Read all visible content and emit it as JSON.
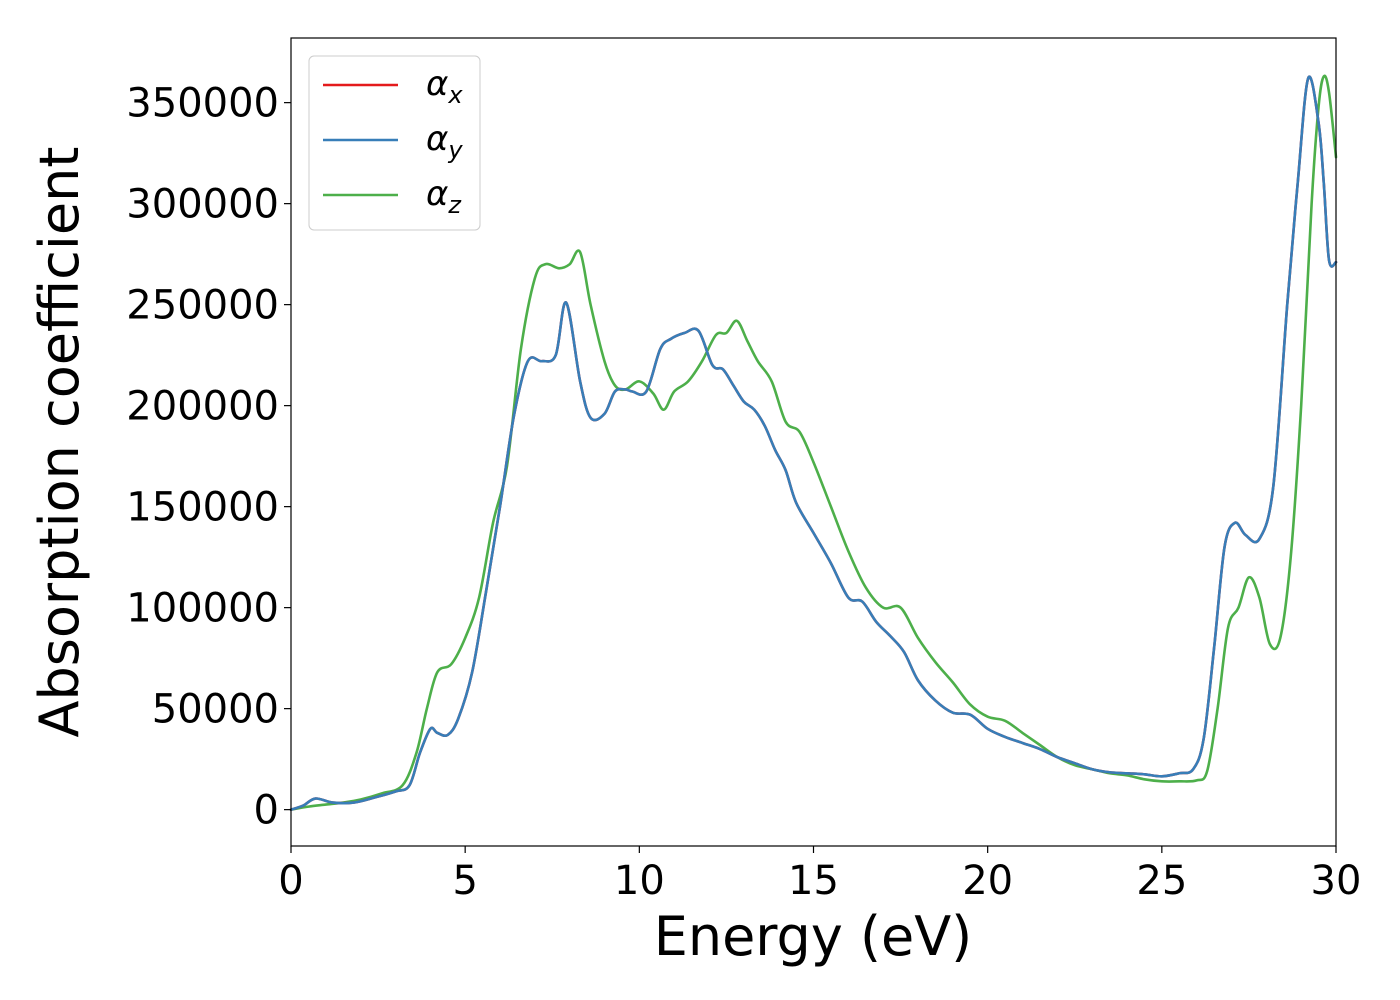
{
  "chart_data": {
    "type": "line",
    "title": "",
    "xlabel": "Energy (eV)",
    "ylabel": "Absorption coefficient",
    "xlim": [
      0,
      30
    ],
    "ylim": [
      -18000,
      382000
    ],
    "xticks": [
      0,
      5,
      10,
      15,
      20,
      25,
      30
    ],
    "xtick_labels": [
      "0",
      "5",
      "10",
      "15",
      "20",
      "25",
      "30"
    ],
    "yticks": [
      0,
      50000,
      100000,
      150000,
      200000,
      250000,
      300000,
      350000
    ],
    "ytick_labels": [
      "0",
      "50000",
      "100000",
      "150000",
      "200000",
      "250000",
      "300000",
      "350000"
    ],
    "grid": false,
    "legend_position": "top-left",
    "series": [
      {
        "name": "α",
        "name_sub": "x",
        "color": "#e41a1c",
        "x": [
          0,
          0.35,
          0.7,
          1.2,
          1.8,
          2.4,
          3.0,
          3.4,
          3.7,
          4.0,
          4.2,
          4.5,
          4.8,
          5.2,
          5.6,
          6.0,
          6.4,
          6.8,
          7.2,
          7.6,
          7.9,
          8.3,
          8.6,
          9.0,
          9.3,
          9.6,
          9.8,
          10.2,
          10.6,
          10.9,
          11.3,
          11.7,
          12.1,
          12.4,
          12.7,
          13.0,
          13.3,
          13.6,
          13.9,
          14.2,
          14.5,
          15.0,
          15.5,
          16.0,
          16.4,
          16.8,
          17.2,
          17.6,
          18.0,
          18.5,
          19.0,
          19.5,
          20.0,
          20.5,
          21.0,
          21.5,
          22.0,
          22.5,
          23.0,
          23.5,
          24.0,
          24.5,
          25.0,
          25.5,
          25.9,
          26.2,
          26.5,
          26.8,
          27.1,
          27.4,
          27.8,
          28.2,
          28.6,
          28.9,
          29.2,
          29.5,
          29.65,
          29.8,
          30.0
        ],
        "y": [
          0,
          2000,
          5500,
          3500,
          3500,
          6000,
          9000,
          12000,
          28000,
          40000,
          38000,
          37000,
          45000,
          68000,
          108000,
          150000,
          195000,
          222000,
          222000,
          225000,
          251000,
          212000,
          194000,
          196000,
          207000,
          208000,
          207000,
          207000,
          228000,
          233000,
          236000,
          237000,
          220000,
          218000,
          210000,
          202000,
          198000,
          190000,
          178000,
          168000,
          152000,
          137000,
          122000,
          105000,
          103000,
          93000,
          86000,
          78000,
          64000,
          54000,
          48000,
          47000,
          40000,
          36000,
          33000,
          30000,
          26000,
          23000,
          20000,
          18500,
          18000,
          17500,
          16500,
          18000,
          20000,
          35000,
          80000,
          130000,
          142000,
          136000,
          134000,
          160000,
          250000,
          310000,
          362000,
          340000,
          310000,
          272000,
          271000
        ]
      },
      {
        "name": "α",
        "name_sub": "y",
        "color": "#377eb8",
        "x": [
          0,
          0.35,
          0.7,
          1.2,
          1.8,
          2.4,
          3.0,
          3.4,
          3.7,
          4.0,
          4.2,
          4.5,
          4.8,
          5.2,
          5.6,
          6.0,
          6.4,
          6.8,
          7.2,
          7.6,
          7.9,
          8.3,
          8.6,
          9.0,
          9.3,
          9.6,
          9.8,
          10.2,
          10.6,
          10.9,
          11.3,
          11.7,
          12.1,
          12.4,
          12.7,
          13.0,
          13.3,
          13.6,
          13.9,
          14.2,
          14.5,
          15.0,
          15.5,
          16.0,
          16.4,
          16.8,
          17.2,
          17.6,
          18.0,
          18.5,
          19.0,
          19.5,
          20.0,
          20.5,
          21.0,
          21.5,
          22.0,
          22.5,
          23.0,
          23.5,
          24.0,
          24.5,
          25.0,
          25.5,
          25.9,
          26.2,
          26.5,
          26.8,
          27.1,
          27.4,
          27.8,
          28.2,
          28.6,
          28.9,
          29.2,
          29.5,
          29.65,
          29.8,
          30.0
        ],
        "y": [
          0,
          2000,
          5500,
          3500,
          3500,
          6000,
          9000,
          12000,
          28000,
          40000,
          38000,
          37000,
          45000,
          68000,
          108000,
          150000,
          195000,
          222000,
          222000,
          225000,
          251000,
          212000,
          194000,
          196000,
          207000,
          208000,
          207000,
          207000,
          228000,
          233000,
          236000,
          237000,
          220000,
          218000,
          210000,
          202000,
          198000,
          190000,
          178000,
          168000,
          152000,
          137000,
          122000,
          105000,
          103000,
          93000,
          86000,
          78000,
          64000,
          54000,
          48000,
          47000,
          40000,
          36000,
          33000,
          30000,
          26000,
          23000,
          20000,
          18500,
          18000,
          17500,
          16500,
          18000,
          20000,
          35000,
          80000,
          130000,
          142000,
          136000,
          134000,
          160000,
          250000,
          310000,
          362000,
          340000,
          310000,
          272000,
          271000
        ]
      },
      {
        "name": "α",
        "name_sub": "z",
        "color": "#4daf4a",
        "x": [
          0,
          0.5,
          1.0,
          1.5,
          2.0,
          2.6,
          3.2,
          3.6,
          3.9,
          4.2,
          4.6,
          5.0,
          5.4,
          5.8,
          6.2,
          6.6,
          7.0,
          7.3,
          7.7,
          8.0,
          8.3,
          8.6,
          9.0,
          9.3,
          9.6,
          10.0,
          10.4,
          10.7,
          11.0,
          11.4,
          11.8,
          12.2,
          12.5,
          12.8,
          13.1,
          13.4,
          13.8,
          14.2,
          14.6,
          15.0,
          15.5,
          16.0,
          16.5,
          17.0,
          17.5,
          18.0,
          18.5,
          19.0,
          19.5,
          20.0,
          20.5,
          21.0,
          21.5,
          22.0,
          22.5,
          23.0,
          23.5,
          24.0,
          24.5,
          25.0,
          25.5,
          26.0,
          26.3,
          26.6,
          26.9,
          27.2,
          27.5,
          27.8,
          28.1,
          28.4,
          28.7,
          29.0,
          29.3,
          29.5,
          29.65,
          29.8,
          30.0
        ],
        "y": [
          0,
          1500,
          2500,
          3500,
          5000,
          8000,
          12000,
          28000,
          50000,
          68000,
          72000,
          85000,
          105000,
          142000,
          170000,
          228000,
          263000,
          270000,
          268000,
          270000,
          276000,
          250000,
          222000,
          210000,
          208000,
          212000,
          206000,
          198000,
          207000,
          212000,
          222000,
          235000,
          236000,
          242000,
          232000,
          222000,
          212000,
          192000,
          187000,
          172000,
          150000,
          128000,
          110000,
          100000,
          100000,
          85000,
          73000,
          63000,
          52000,
          46000,
          44000,
          38000,
          32000,
          26000,
          22000,
          20000,
          18000,
          17000,
          15000,
          14000,
          14000,
          14500,
          19000,
          50000,
          90000,
          100000,
          115000,
          105000,
          82000,
          85000,
          125000,
          200000,
          300000,
          348000,
          363000,
          355000,
          323000
        ]
      }
    ]
  }
}
